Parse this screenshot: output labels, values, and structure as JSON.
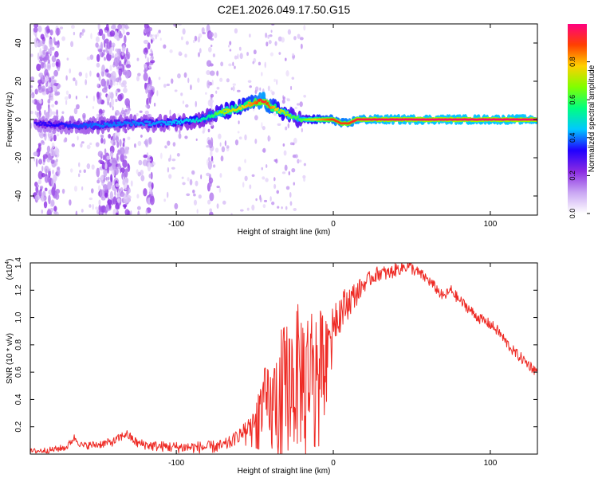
{
  "title": "C2E1.2026.049.17.50.G15",
  "chart_data": [
    {
      "type": "heatmap",
      "title": "C2E1.2026.049.17.50.G15",
      "xlabel": "Height of straight line (km)",
      "ylabel": "Frequency (Hz)",
      "xlim": [
        -193,
        130
      ],
      "ylim": [
        -50,
        50
      ],
      "x_ticks": [
        -100,
        0,
        100
      ],
      "y_ticks": [
        -40,
        -20,
        0,
        20,
        40
      ],
      "x_tick_labels": [
        "-100",
        "0",
        "100"
      ],
      "y_tick_labels": [
        "-40",
        "-20",
        "0",
        "20",
        "40"
      ],
      "colorbar": {
        "label": "Normalized spectral amplitude",
        "range": [
          0,
          1
        ],
        "ticks": [
          0,
          0.2,
          0.4,
          0.6,
          0.8
        ],
        "tick_labels": [
          "0.0",
          "0.2",
          "0.4",
          "0.6",
          "0.8"
        ],
        "colors": [
          "#ffffff",
          "#c9a6f3",
          "#8a2be2",
          "#2000ff",
          "#00c8ff",
          "#00ff80",
          "#80ff00",
          "#ffd000",
          "#ff4000",
          "#ff0080"
        ]
      },
      "ridge": {
        "x": [
          -190,
          -170,
          -150,
          -130,
          -110,
          -95,
          -85,
          -78,
          -70,
          -60,
          -50,
          -45,
          -40,
          -35,
          -30,
          -25,
          -20,
          -15,
          -10,
          -5,
          0,
          5,
          10,
          15,
          30,
          60,
          100,
          130
        ],
        "y": [
          -2,
          -3,
          -3,
          -2,
          -2,
          -1,
          0,
          2,
          4,
          6,
          9,
          10,
          7,
          5,
          3,
          1,
          0,
          0,
          0,
          0,
          0,
          -2,
          -2,
          0,
          0,
          0,
          0,
          0
        ],
        "amplitude": [
          0.3,
          0.35,
          0.4,
          0.4,
          0.42,
          0.45,
          0.5,
          0.55,
          0.7,
          0.75,
          0.85,
          0.95,
          0.85,
          0.75,
          0.7,
          0.6,
          0.6,
          0.7,
          0.8,
          0.85,
          0.9,
          0.9,
          0.9,
          0.95,
          0.97,
          0.98,
          0.98,
          0.98
        ]
      },
      "noise_bands_x": [
        -190,
        -175,
        -150,
        -130,
        -120,
        -115,
        -80,
        -77
      ]
    },
    {
      "type": "line",
      "xlabel": "Height of straight line (km)",
      "ylabel": "SNR (10 * v/v)",
      "y_multiplier": "(x10",
      "y_multiplier_exp": "4",
      "y_multiplier_close": ")",
      "xlim": [
        -193,
        130
      ],
      "ylim": [
        0,
        1.4
      ],
      "x_ticks": [
        -100,
        0,
        100
      ],
      "y_ticks": [
        0.2,
        0.4,
        0.6,
        0.8,
        1.0,
        1.2,
        1.4
      ],
      "x_tick_labels": [
        "-100",
        "0",
        "100"
      ],
      "y_tick_labels": [
        "0.2",
        "0.4",
        "0.6",
        "0.8",
        "1.0",
        "1.2",
        "1.4"
      ],
      "color": "#ee2a24",
      "series": [
        {
          "name": "SNR",
          "x": [
            -193,
            -180,
            -170,
            -165,
            -160,
            -150,
            -140,
            -132,
            -125,
            -115,
            -100,
            -90,
            -80,
            -70,
            -65,
            -60,
            -55,
            -50,
            -45,
            -40,
            -35,
            -30,
            -25,
            -20,
            -15,
            -12,
            -10,
            -5,
            0,
            5,
            10,
            15,
            20,
            25,
            30,
            35,
            40,
            45,
            48,
            50,
            55,
            60,
            65,
            70,
            75,
            80,
            85,
            90,
            95,
            100,
            105,
            110,
            115,
            120,
            125,
            130
          ],
          "y": [
            0.02,
            0.03,
            0.05,
            0.12,
            0.06,
            0.07,
            0.09,
            0.15,
            0.08,
            0.06,
            0.05,
            0.05,
            0.05,
            0.06,
            0.09,
            0.14,
            0.2,
            0.24,
            0.4,
            0.3,
            0.45,
            0.5,
            0.55,
            0.58,
            0.62,
            0.75,
            0.65,
            0.8,
            1.0,
            1.05,
            1.12,
            1.18,
            1.25,
            1.3,
            1.33,
            1.32,
            1.35,
            1.37,
            1.38,
            1.36,
            1.32,
            1.28,
            1.22,
            1.15,
            1.2,
            1.13,
            1.08,
            1.02,
            0.98,
            0.95,
            0.9,
            0.82,
            0.75,
            0.7,
            0.65,
            0.6
          ]
        }
      ],
      "noise_amplitude": {
        "x": [
          -193,
          -60,
          -50,
          -40,
          -30,
          -20,
          -10,
          0,
          20,
          60,
          130
        ],
        "amp": [
          0.02,
          0.05,
          0.12,
          0.35,
          0.5,
          0.55,
          0.4,
          0.18,
          0.06,
          0.04,
          0.04
        ]
      }
    }
  ]
}
